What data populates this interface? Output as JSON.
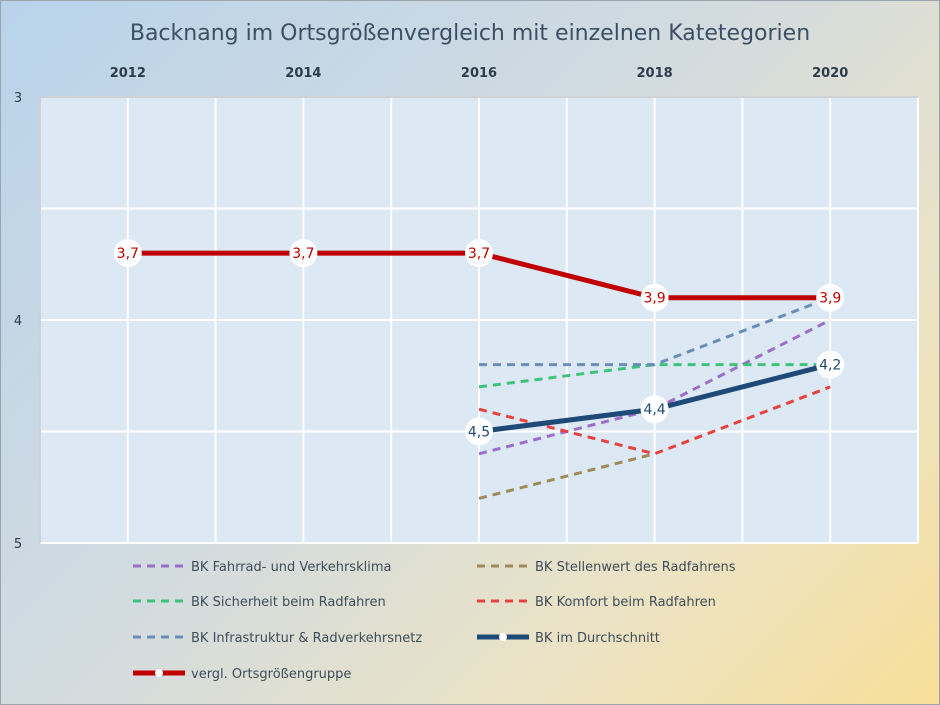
{
  "chart_data": {
    "type": "line",
    "title": "Backnang im Ortsgrößenvergleich  mit einzelnen Katetegorien",
    "x": [
      "2012",
      "2014",
      "2016",
      "2018",
      "2020"
    ],
    "y_ticks": [
      "3",
      "4",
      "5"
    ],
    "ylim": [
      3,
      5
    ],
    "y_inverted": true,
    "x_axis_position": "top",
    "grid": true,
    "legend_position": "bottom",
    "series": [
      {
        "name": "BK Fahrrad- und Verkehrsklima",
        "color": "#9b6fc6",
        "style": "dashed",
        "values": [
          null,
          null,
          4.6,
          4.4,
          4.0
        ]
      },
      {
        "name": "BK Stellenwert des Radfahrens",
        "color": "#9e8a58",
        "style": "dashed",
        "values": [
          null,
          null,
          4.8,
          4.6,
          null
        ]
      },
      {
        "name": "BK Sicherheit beim Radfahren",
        "color": "#3ec47a",
        "style": "dashed",
        "values": [
          null,
          null,
          4.3,
          4.2,
          4.2
        ]
      },
      {
        "name": "BK Komfort beim Radfahren",
        "color": "#e8423f",
        "style": "dashed",
        "values": [
          null,
          null,
          4.4,
          4.6,
          4.3
        ]
      },
      {
        "name": "BK Infrastruktur & Radverkehrsnetz",
        "color": "#6a8db8",
        "style": "dashed",
        "values": [
          null,
          null,
          4.2,
          4.2,
          3.9
        ]
      },
      {
        "name": "BK im Durchschnitt",
        "color": "#1f4a78",
        "style": "solid",
        "values": [
          null,
          null,
          4.5,
          4.4,
          4.2
        ],
        "labels": [
          null,
          null,
          "4,5",
          "4,4",
          "4,2"
        ]
      },
      {
        "name": "vergl. Ortsgrößengruppe",
        "color": "#c00000",
        "style": "solid",
        "values": [
          3.7,
          3.7,
          3.7,
          3.9,
          3.9
        ],
        "labels": [
          "3,7",
          "3,7",
          "3,7",
          "3,9",
          "3,9"
        ]
      }
    ]
  }
}
